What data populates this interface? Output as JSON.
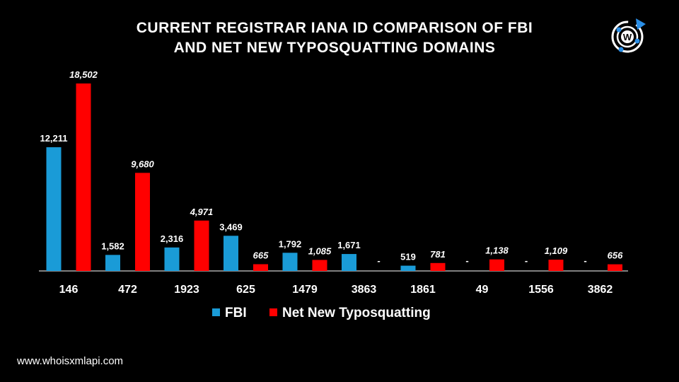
{
  "chart_data": {
    "type": "bar",
    "title_line1": "CURRENT REGISTRAR IANA ID COMPARISON OF FBI",
    "title_line2": "AND NET NEW TYPOSQUATTING DOMAINS",
    "categories": [
      "146",
      "472",
      "1923",
      "625",
      "1479",
      "3863",
      "1861",
      "49",
      "1556",
      "3862"
    ],
    "series": [
      {
        "name": "FBI",
        "color": "#1a9bd7",
        "values": [
          12211,
          1582,
          2316,
          3469,
          1792,
          1671,
          519,
          null,
          null,
          null
        ],
        "labels": [
          "12,211",
          "1,582",
          "2,316",
          "3,469",
          "1,792",
          "1,671",
          "519",
          "-",
          "-",
          "-"
        ]
      },
      {
        "name": "Net New Typosquatting",
        "color": "#ff0000",
        "values": [
          18502,
          9680,
          4971,
          665,
          1085,
          null,
          781,
          1138,
          1109,
          656
        ],
        "labels": [
          "18,502",
          "9,680",
          "4,971",
          "665",
          "1,085",
          "-",
          "781",
          "1,138",
          "1,109",
          "656"
        ]
      }
    ],
    "ylim": [
      0,
      18502
    ],
    "legend": "bottom-center",
    "grid": false
  },
  "footer": "www.whoisxmlapi.com",
  "logo_letter": "W"
}
